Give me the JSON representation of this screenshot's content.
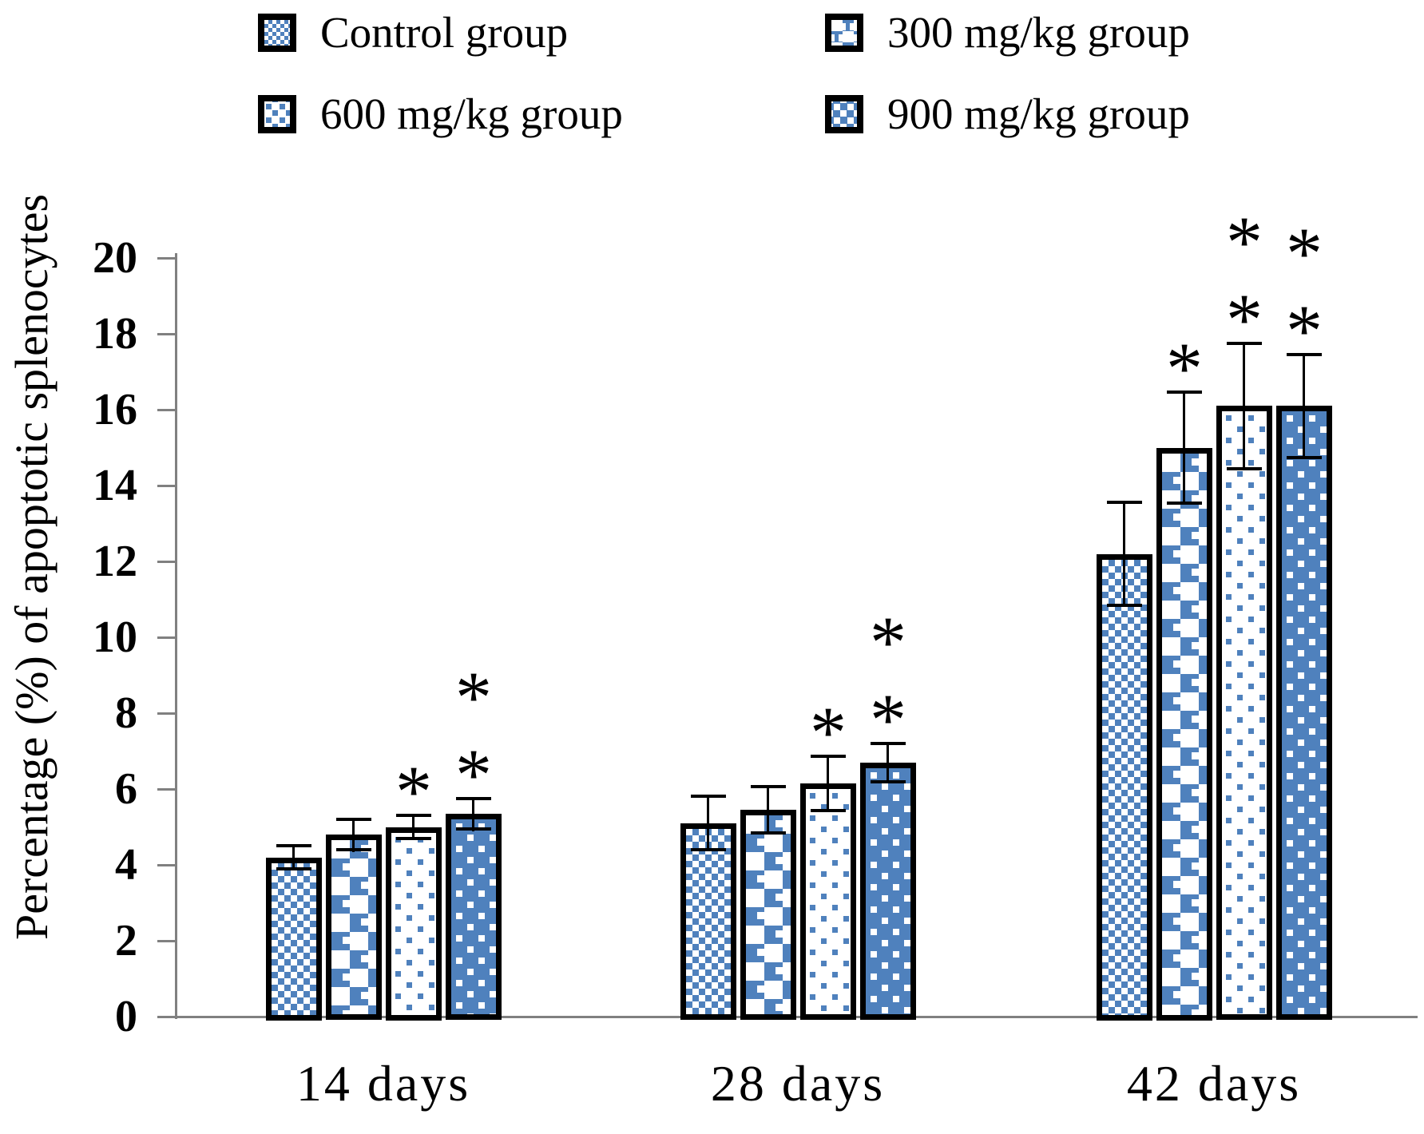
{
  "chart_data": {
    "type": "bar",
    "title": "",
    "xlabel": "",
    "ylabel": "Percentage (%) of apoptotic splenocytes",
    "ylim": [
      0,
      20
    ],
    "ytick_step": 2,
    "grid": false,
    "legend_position": "top",
    "error_bars": true,
    "categories": [
      "14 days",
      "28 days",
      "42 days"
    ],
    "series": [
      {
        "name": "Control group",
        "pattern": "small-checker",
        "values": [
          4.2,
          5.1,
          12.2
        ],
        "errors": [
          0.35,
          0.75,
          1.4
        ],
        "significance": [
          "",
          "",
          ""
        ]
      },
      {
        "name": "300 mg/kg group",
        "pattern": "large-checker",
        "values": [
          4.8,
          5.45,
          15.0
        ],
        "errors": [
          0.45,
          0.65,
          1.5
        ],
        "significance": [
          "",
          "",
          "*"
        ]
      },
      {
        "name": "600 mg/kg group",
        "pattern": "white-with-blue-dots",
        "values": [
          5.0,
          6.15,
          16.1
        ],
        "errors": [
          0.35,
          0.75,
          1.7
        ],
        "significance": [
          "*",
          "*",
          "**"
        ]
      },
      {
        "name": "900 mg/kg group",
        "pattern": "blue-with-white-dots",
        "values": [
          5.35,
          6.7,
          16.1
        ],
        "errors": [
          0.45,
          0.55,
          1.4
        ],
        "significance": [
          "**",
          "**",
          "**"
        ]
      }
    ],
    "colors": {
      "bar_fill_blue": "#4F81BD",
      "bar_border": "#000000",
      "axis": "#808080",
      "text": "#000000",
      "background": "#FFFFFF"
    },
    "significance_marker": "*"
  }
}
